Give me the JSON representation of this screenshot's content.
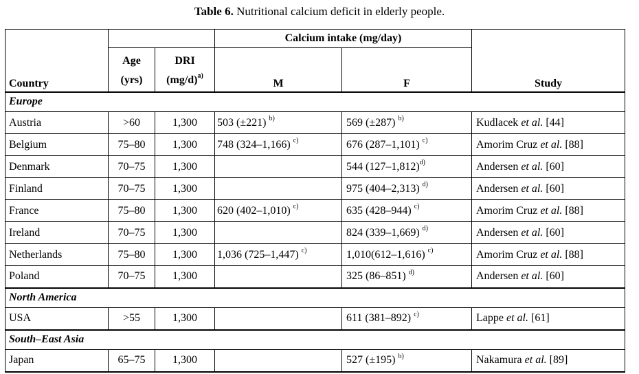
{
  "colors": {
    "text": "#000000",
    "background": "#ffffff",
    "border": "#000000"
  },
  "title": {
    "label": "Table 6.",
    "text": " Nutritional calcium deficit in elderly people."
  },
  "table": {
    "headers": {
      "country": "Country",
      "age_line1": "Age",
      "age_line2": "(yrs)",
      "dri_line1": "DRI",
      "dri_line2": "(mg/d)",
      "dri_sup": "a)",
      "calcium_group": "Calcium intake (mg/day)",
      "male": "M",
      "female": "F",
      "study": "Study"
    },
    "rows": [
      {
        "type": "region",
        "label": "Europe"
      },
      {
        "type": "data",
        "country": "Austria",
        "age": ">60",
        "dri": "1,300",
        "m": {
          "text": "503 (±221) ",
          "sup": "b)"
        },
        "f": {
          "text": "569 (±287) ",
          "sup": "b)"
        },
        "study": {
          "pre": "Kudlacek ",
          "etal": "et al.",
          "post": " [44]"
        }
      },
      {
        "type": "data",
        "country": "Belgium",
        "age": "75–80",
        "dri": "1,300",
        "m": {
          "text": "748 (324–1,166) ",
          "sup": "c)"
        },
        "f": {
          "text": "676 (287–1,101) ",
          "sup": "c)"
        },
        "study": {
          "pre": "Amorim Cruz ",
          "etal": "et al.",
          "post": " [88]"
        }
      },
      {
        "type": "data",
        "country": "Denmark",
        "age": "70–75",
        "dri": "1,300",
        "m": null,
        "f": {
          "text": "544 (127–1,812)",
          "sup": "d)"
        },
        "study": {
          "pre": "Andersen ",
          "etal": "et al.",
          "post": " [60]"
        }
      },
      {
        "type": "data",
        "country": "Finland",
        "age": "70–75",
        "dri": "1,300",
        "m": null,
        "f": {
          "text": "975 (404–2,313) ",
          "sup": "d)"
        },
        "study": {
          "pre": "Andersen ",
          "etal": "et al.",
          "post": " [60]"
        }
      },
      {
        "type": "data",
        "country": "France",
        "age": "75–80",
        "dri": "1,300",
        "m": {
          "text": "620 (402–1,010) ",
          "sup": "c)"
        },
        "f": {
          "text": "635 (428–944) ",
          "sup": "c)"
        },
        "study": {
          "pre": "Amorim Cruz ",
          "etal": "et al.",
          "post": " [88]"
        }
      },
      {
        "type": "data",
        "country": "Ireland",
        "age": "70–75",
        "dri": "1,300",
        "m": null,
        "f": {
          "text": "824 (339–1,669) ",
          "sup": "d)"
        },
        "study": {
          "pre": "Andersen ",
          "etal": "et al.",
          "post": " [60]"
        }
      },
      {
        "type": "data",
        "country": "Netherlands",
        "age": "75–80",
        "dri": "1,300",
        "m": {
          "text": "1,036 (725–1,447) ",
          "sup": "c)"
        },
        "f": {
          "text": "1,010(612–1,616) ",
          "sup": "c)"
        },
        "study": {
          "pre": "Amorim Cruz ",
          "etal": "et al.",
          "post": " [88]"
        }
      },
      {
        "type": "data",
        "country": "Poland",
        "age": "70–75",
        "dri": "1,300",
        "m": null,
        "f": {
          "text": "325 (86–851) ",
          "sup": "d)"
        },
        "study": {
          "pre": "Andersen ",
          "etal": "et al.",
          "post": " [60]"
        }
      },
      {
        "type": "region",
        "label": "North America"
      },
      {
        "type": "data",
        "country": "USA",
        "age": ">55",
        "dri": "1,300",
        "m": null,
        "f": {
          "text": "611 (381–892) ",
          "sup": "c)"
        },
        "study": {
          "pre": "Lappe ",
          "etal": "et al.",
          "post": " [61]"
        }
      },
      {
        "type": "region",
        "label": "South–East Asia"
      },
      {
        "type": "data",
        "country": "Japan",
        "age": "65–75",
        "dri": "1,300",
        "m": null,
        "f": {
          "text": "527 (±195) ",
          "sup": "b)"
        },
        "study": {
          "pre": "Nakamura ",
          "etal": "et al.",
          "post": " [89]"
        }
      }
    ]
  }
}
